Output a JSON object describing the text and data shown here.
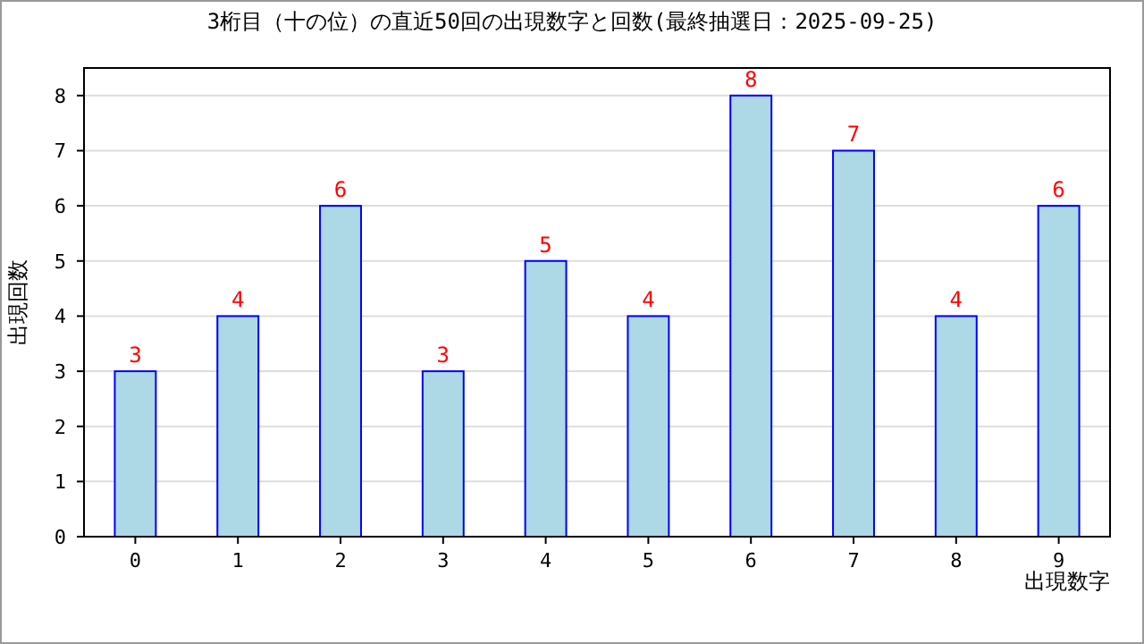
{
  "chart_data": {
    "type": "bar",
    "title": "3桁目（十の位）の直近50回の出現数字と回数(最終抽選日：2025-09-25)",
    "xlabel": "出現数字",
    "ylabel": "出現回数",
    "categories": [
      "0",
      "1",
      "2",
      "3",
      "4",
      "5",
      "6",
      "7",
      "8",
      "9"
    ],
    "values": [
      3,
      4,
      6,
      3,
      5,
      4,
      8,
      7,
      4,
      6
    ],
    "color": "#add8e6",
    "data_labels": true,
    "ylim": [
      0,
      8.5
    ],
    "yticks": [
      0,
      1,
      2,
      3,
      4,
      5,
      6,
      7,
      8
    ],
    "grid": "y"
  }
}
